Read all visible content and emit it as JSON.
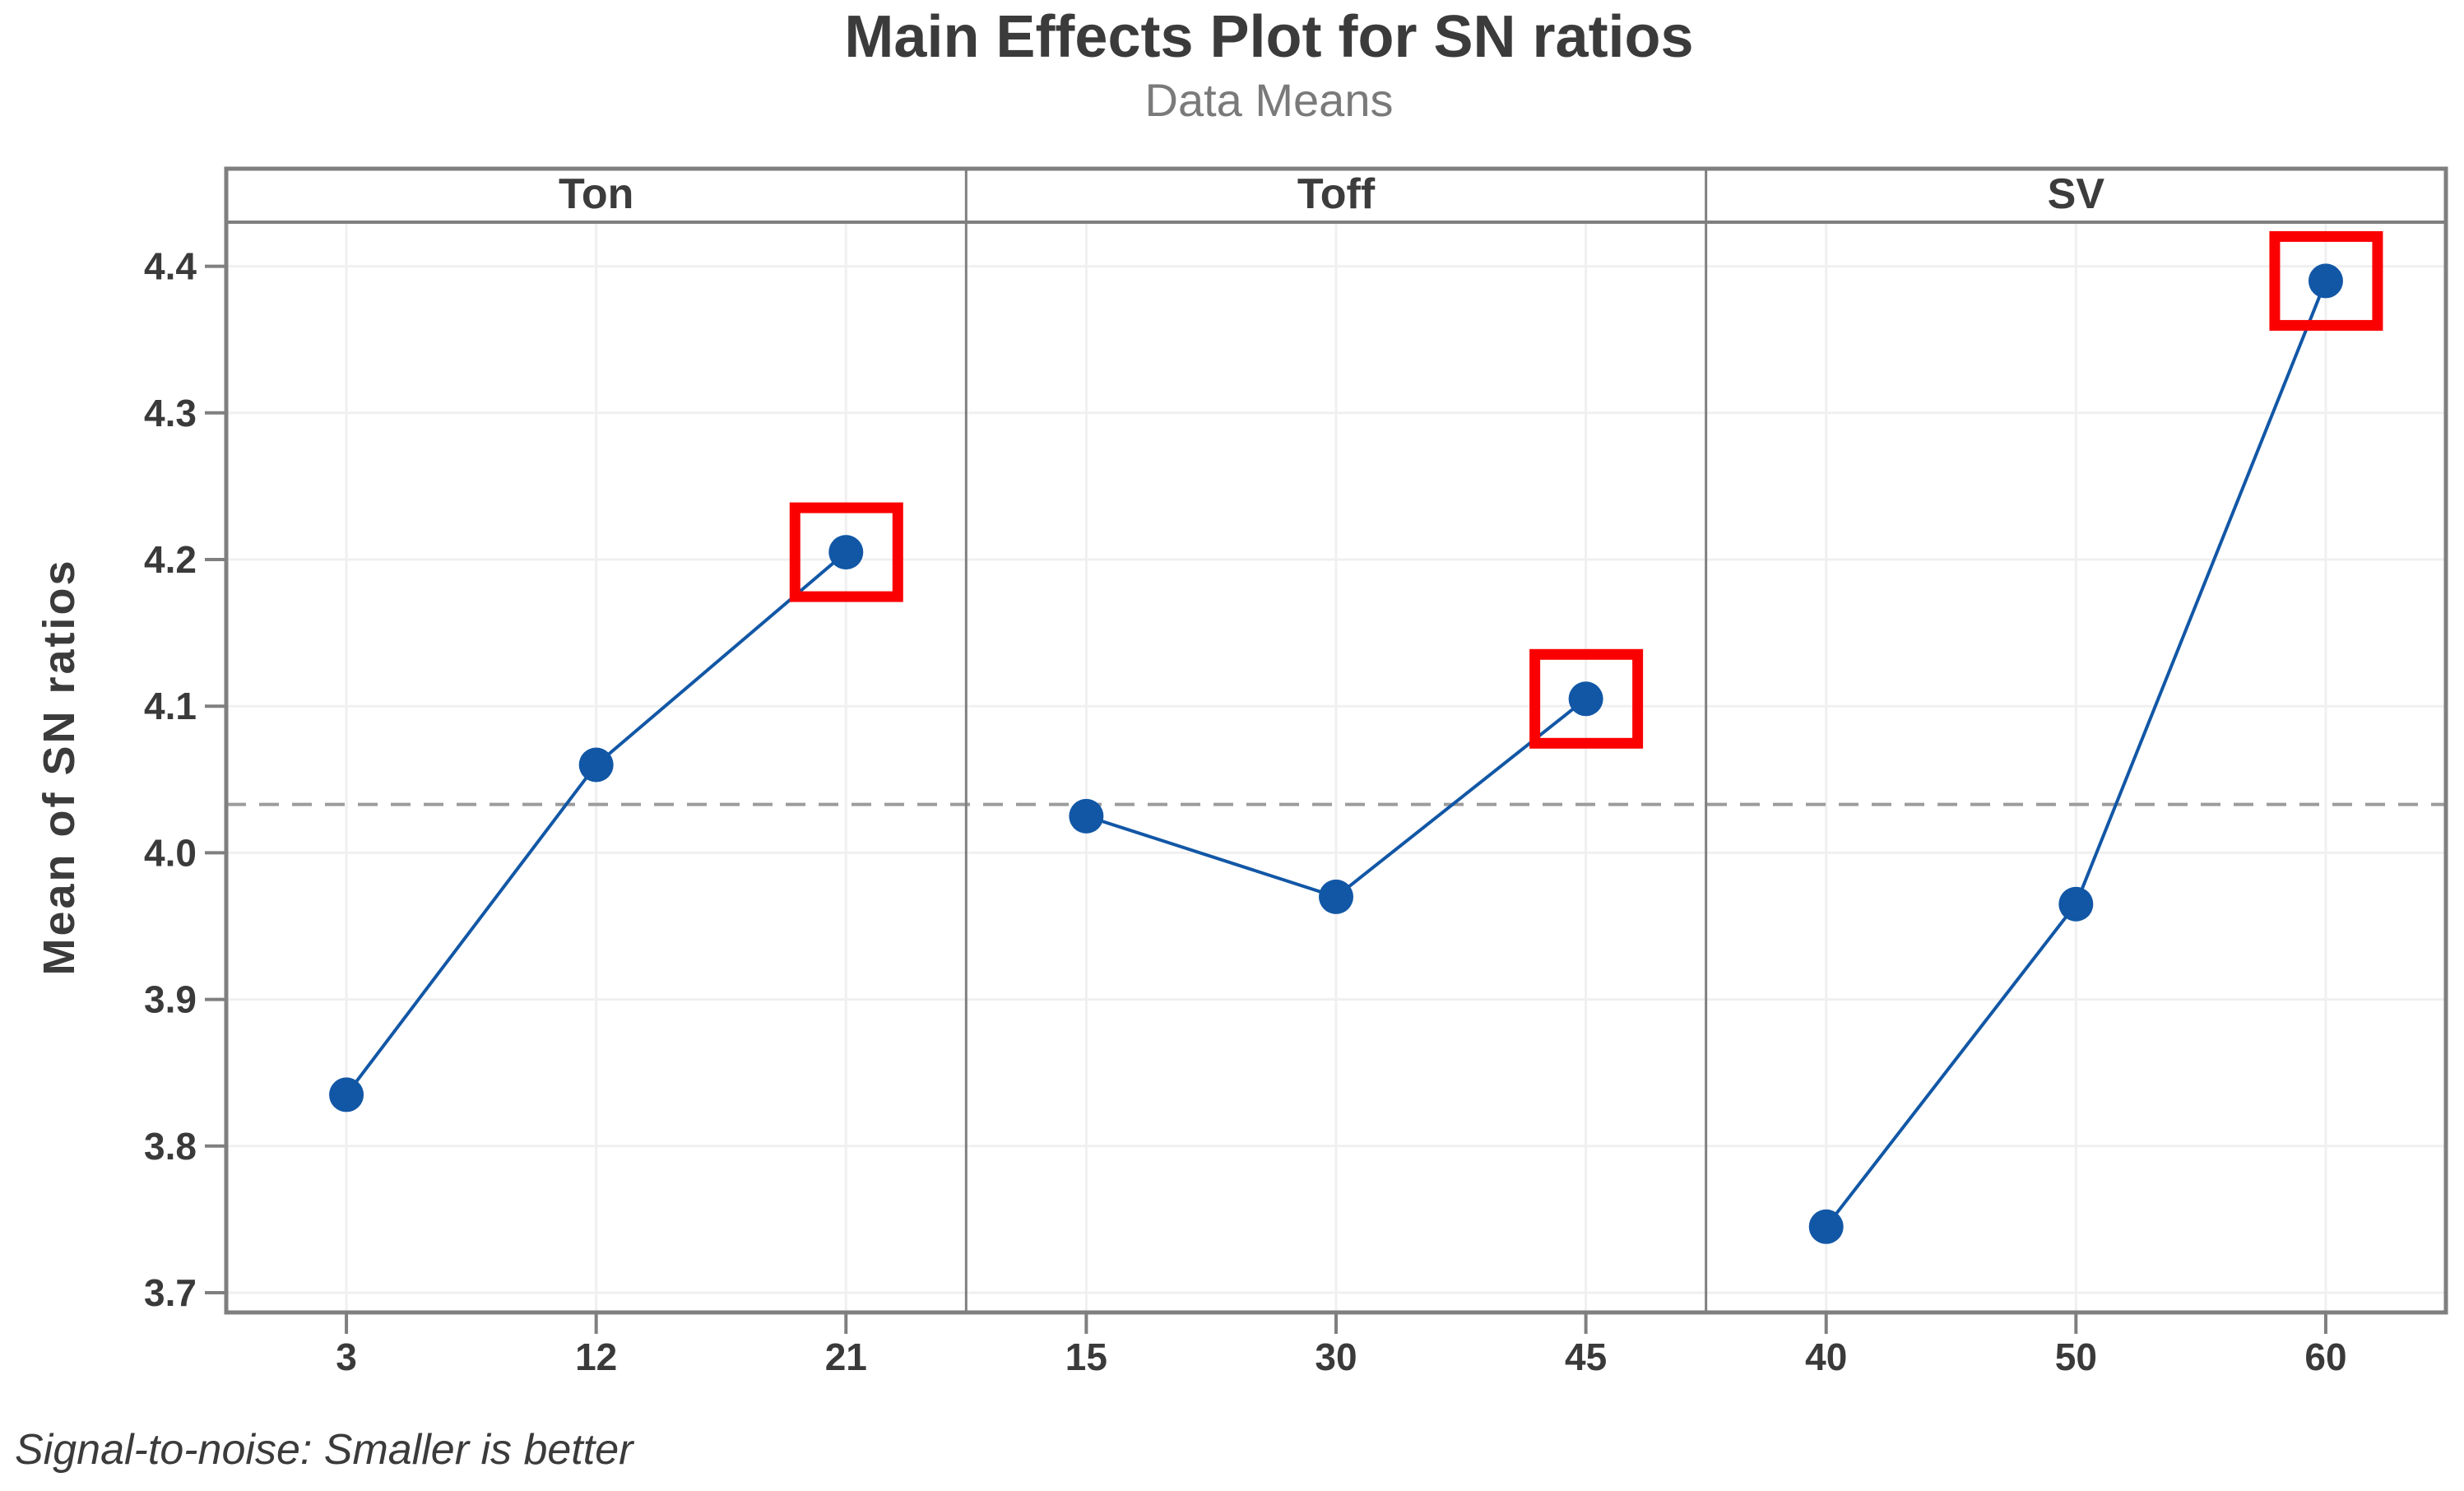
{
  "title": "Main Effects Plot for SN ratios",
  "subtitle": "Data Means",
  "ylabel": "Mean of SN ratios",
  "footer": "Signal-to-noise: Smaller is better",
  "colors": {
    "point": "#1257A6",
    "line": "#1257A6",
    "highlight": "#FA0000",
    "grid": "#F0F0F0",
    "axis": "#7F7F7F",
    "mean_line": "#9C9C9C",
    "title_text": "#3B3B3B",
    "subtitle_text": "#7A7A7A",
    "tick_text": "#3A3A3A"
  },
  "chart_data": {
    "type": "line",
    "title": "Main Effects Plot for SN ratios",
    "subtitle": "Data Means",
    "ylabel": "Mean of SN ratios",
    "footnote": "Signal-to-noise: Smaller is better",
    "ylim": [
      3.65,
      4.46
    ],
    "yticks": [
      3.7,
      3.8,
      3.9,
      4.0,
      4.1,
      4.2,
      4.3,
      4.4
    ],
    "grand_mean": 4.033,
    "mean_line_style": "dashed",
    "grid": true,
    "legend": "none",
    "panels": [
      {
        "factor": "Ton",
        "x": [
          3,
          12,
          21
        ],
        "y": [
          3.835,
          4.06,
          4.205
        ],
        "highlight_index": 2
      },
      {
        "factor": "Toff",
        "x": [
          15,
          30,
          45
        ],
        "y": [
          4.025,
          3.97,
          4.105
        ],
        "highlight_index": 2
      },
      {
        "factor": "SV",
        "x": [
          40,
          50,
          60
        ],
        "y": [
          3.745,
          3.965,
          4.39
        ],
        "highlight_index": 2
      }
    ]
  }
}
